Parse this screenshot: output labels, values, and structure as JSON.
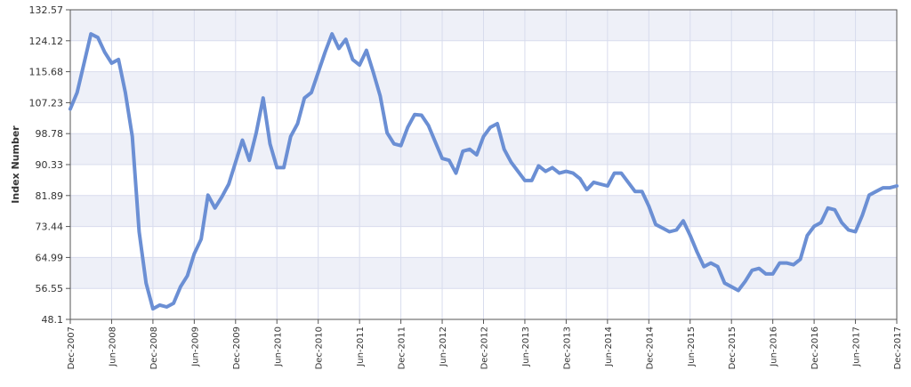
{
  "chart_data": {
    "type": "line",
    "title": "",
    "xlabel": "",
    "ylabel": "Index Number",
    "ylim": [
      48.1,
      132.57
    ],
    "grid": true,
    "colors": {
      "line": "#6b8fd4",
      "band_alt": "#eef0f8",
      "grid": "#d8dced",
      "axis": "#555555",
      "text": "#333333"
    },
    "y_ticks": [
      "48.1",
      "56.55",
      "64.99",
      "73.44",
      "81.89",
      "90.33",
      "98.78",
      "107.23",
      "115.68",
      "124.12",
      "132.57"
    ],
    "x_ticks": [
      "Dec-2007",
      "Jun-2008",
      "Dec-2008",
      "Jun-2009",
      "Dec-2009",
      "Jun-2010",
      "Dec-2010",
      "Jun-2011",
      "Dec-2011",
      "Jun-2012",
      "Dec-2012",
      "Jun-2013",
      "Dec-2013",
      "Jun-2014",
      "Dec-2014",
      "Jun-2015",
      "Dec-2015",
      "Jun-2016",
      "Dec-2016",
      "Jun-2017",
      "Dec-2017"
    ],
    "series": [
      {
        "values": [
          105.5,
          110.0,
          118.0,
          126.0,
          125.0,
          121.0,
          118.0,
          119.0,
          110.0,
          98.0,
          72.0,
          58.0,
          51.0,
          52.0,
          51.5,
          52.5,
          57.0,
          60.0,
          66.0,
          70.0,
          82.0,
          78.5,
          81.5,
          85.0,
          91.0,
          97.0,
          91.5,
          99.0,
          108.5,
          96.0,
          89.5,
          89.5,
          98.0,
          101.5,
          108.5,
          110.0,
          115.5,
          121.0,
          126.0,
          122.0,
          124.5,
          119.0,
          117.5,
          121.5,
          115.5,
          109.0,
          99.0,
          96.0,
          95.5,
          100.5,
          104.0,
          103.8,
          101.0,
          96.5,
          92.0,
          91.5,
          88.0,
          94.0,
          94.5,
          93.0,
          98.0,
          100.5,
          101.5,
          94.5,
          91.0,
          88.5,
          86.0,
          86.0,
          90.0,
          88.5,
          89.5,
          88.0,
          88.5,
          88.0,
          86.5,
          83.5,
          85.5,
          85.0,
          84.5,
          88.0,
          88.0,
          85.5,
          83.0,
          83.0,
          79.0,
          74.0,
          73.0,
          72.0,
          72.5,
          75.0,
          71.0,
          66.5,
          62.5,
          63.5,
          62.5,
          58.0,
          57.0,
          56.0,
          58.5,
          61.5,
          62.0,
          60.5,
          60.5,
          63.5,
          63.5,
          63.0,
          64.5,
          71.0,
          73.5,
          74.5,
          78.5,
          78.0,
          74.5,
          72.5,
          72.0,
          76.5,
          82.0,
          83.0,
          84.0,
          84.0,
          84.5
        ]
      }
    ]
  }
}
